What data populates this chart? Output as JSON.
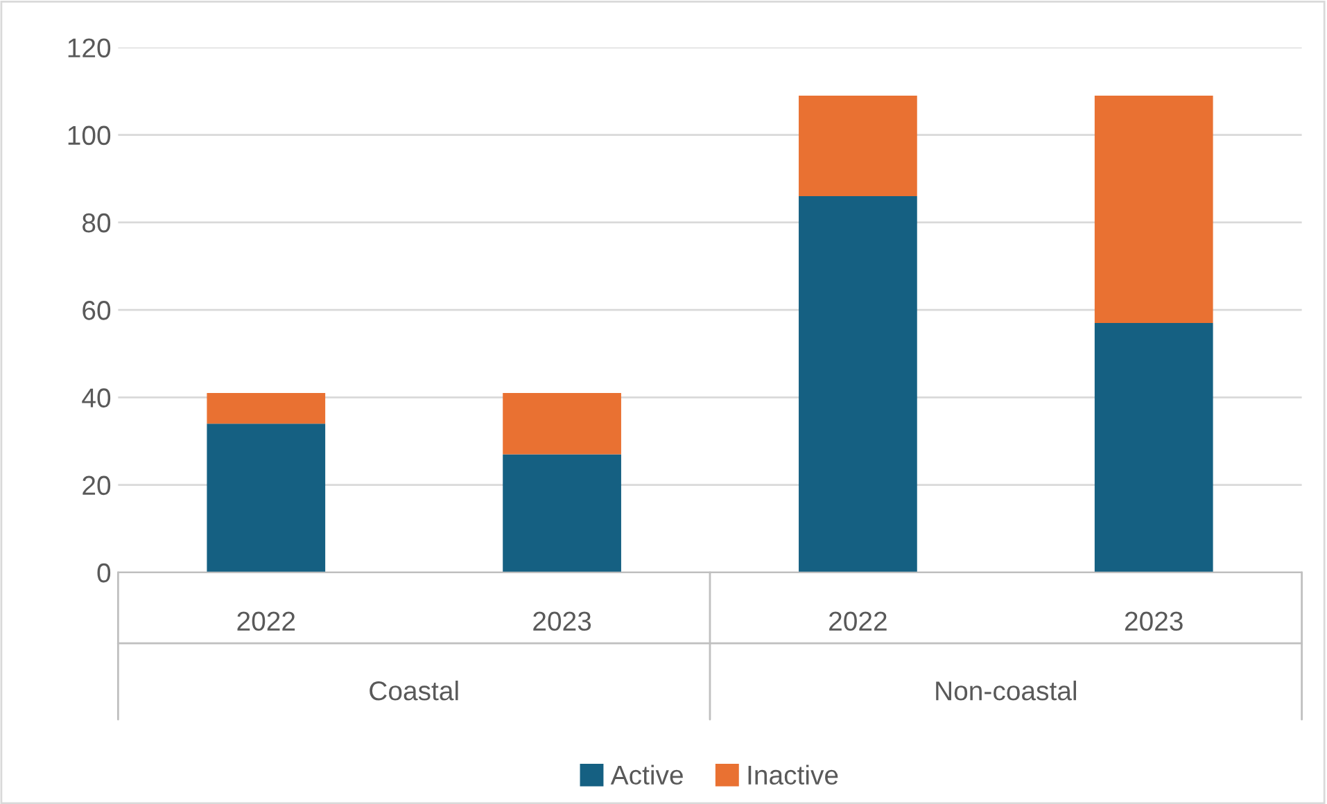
{
  "chart_data": {
    "type": "bar",
    "stacked": true,
    "categories": [
      "2022",
      "2023",
      "2022",
      "2023"
    ],
    "series": [
      {
        "name": "Active",
        "color": "#156082",
        "values": [
          34,
          27,
          86,
          57
        ]
      },
      {
        "name": "Inactive",
        "color": "#e97132",
        "values": [
          7,
          14,
          23,
          52
        ]
      }
    ],
    "annotations": [
      "Coastal",
      "Non-coastal"
    ],
    "ylim": [
      0,
      120
    ],
    "yticks": [
      0,
      20,
      40,
      60,
      80,
      100,
      120
    ],
    "grid": "y",
    "legend": "bottom"
  }
}
